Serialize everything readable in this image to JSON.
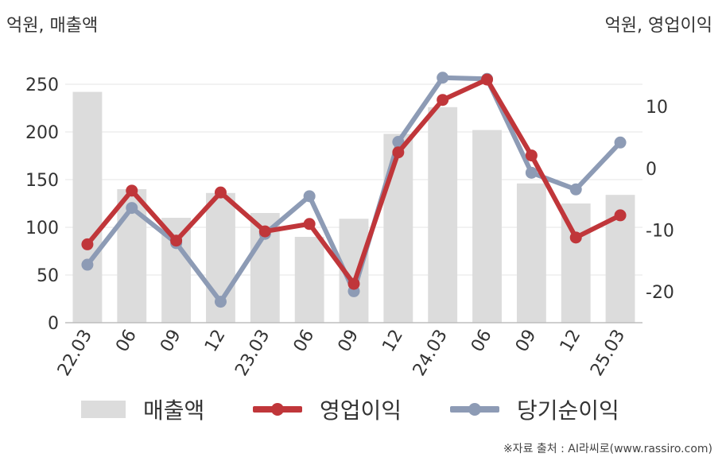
{
  "chart_data": {
    "type": "bar+line",
    "left_axis_label": "억원, 매출액",
    "right_axis_label": "억원, 영업이익",
    "categories": [
      "22.03",
      "06",
      "09",
      "12",
      "23.03",
      "06",
      "09",
      "12",
      "24.03",
      "06",
      "09",
      "12",
      "25.03"
    ],
    "left_axis": {
      "range": [
        0,
        275
      ],
      "ticks": [
        0,
        50,
        100,
        150,
        200,
        250
      ]
    },
    "right_axis": {
      "range": [
        -25,
        17.5
      ],
      "ticks": [
        -20,
        -10,
        0,
        10
      ]
    },
    "series": [
      {
        "name": "매출액",
        "type": "bar",
        "axis": "left",
        "color": "#dcdcdc",
        "values": [
          242,
          140,
          110,
          136,
          115,
          90,
          109,
          198,
          226,
          202,
          146,
          125,
          134
        ]
      },
      {
        "name": "영업이익",
        "type": "line",
        "axis": "right",
        "color": "#c0363a",
        "values": [
          -12.3,
          -3.6,
          -11.7,
          -3.9,
          -10.2,
          -9.0,
          -18.7,
          2.6,
          11.1,
          14.4,
          2.1,
          -11.2,
          -7.6
        ]
      },
      {
        "name": "당기순이익",
        "type": "line",
        "axis": "right",
        "color": "#8d9bb5",
        "values": [
          -15.6,
          -6.4,
          -12.1,
          -21.6,
          -10.6,
          -4.5,
          -19.9,
          4.3,
          14.7,
          14.5,
          -0.7,
          -3.4,
          4.2
        ]
      }
    ],
    "grid": true,
    "legend_position": "bottom"
  },
  "legend": {
    "items": [
      {
        "label": "매출액"
      },
      {
        "label": "영업이익"
      },
      {
        "label": "당기순이익"
      }
    ]
  },
  "source": "※자료 출처 : AI라씨로(www.rassiro.com)"
}
